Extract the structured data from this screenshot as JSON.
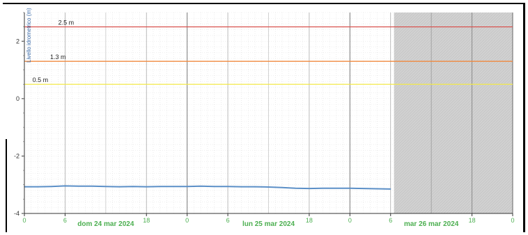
{
  "chart_data": {
    "type": "line",
    "ylabel": "Livello idrometrico (m)",
    "ylim": [
      -4,
      3
    ],
    "y_ticks": [
      "-4",
      "-2",
      "0",
      "2"
    ],
    "x_range_hours": [
      0,
      72
    ],
    "forecast_start_hour": 54.5,
    "x_hour_ticks": [
      {
        "h": 0,
        "label": "0"
      },
      {
        "h": 6,
        "label": "6"
      },
      {
        "h": 18,
        "label": "18"
      },
      {
        "h": 24,
        "label": "0"
      },
      {
        "h": 30,
        "label": "6"
      },
      {
        "h": 42,
        "label": "18"
      },
      {
        "h": 48,
        "label": "0"
      },
      {
        "h": 54,
        "label": "6"
      },
      {
        "h": 66,
        "label": "18"
      },
      {
        "h": 72,
        "label": "0"
      }
    ],
    "day_labels": [
      {
        "h": 12,
        "label": "dom 24 mar 2024"
      },
      {
        "h": 36,
        "label": "lun 25 mar 2024"
      },
      {
        "h": 60,
        "label": "mar 26 mar 2024"
      }
    ],
    "thresholds": [
      {
        "value": 2.5,
        "label": "2.5 m",
        "color": "#d9534f"
      },
      {
        "value": 1.3,
        "label": "1.3 m",
        "color": "#f0883e"
      },
      {
        "value": 0.5,
        "label": "0.5 m",
        "color": "#f2e84a"
      }
    ],
    "series": [
      {
        "color": "#5b8fc7",
        "x": [
          0,
          2,
          4,
          6,
          8,
          10,
          12,
          14,
          16,
          18,
          20,
          22,
          24,
          26,
          28,
          30,
          32,
          34,
          36,
          38,
          40,
          42,
          44,
          46,
          48,
          50,
          52,
          54
        ],
        "y": [
          -3.07,
          -3.07,
          -3.06,
          -3.04,
          -3.05,
          -3.05,
          -3.06,
          -3.07,
          -3.06,
          -3.07,
          -3.06,
          -3.06,
          -3.06,
          -3.05,
          -3.06,
          -3.06,
          -3.07,
          -3.07,
          -3.08,
          -3.1,
          -3.12,
          -3.13,
          -3.12,
          -3.12,
          -3.12,
          -3.13,
          -3.14,
          -3.15
        ]
      }
    ]
  }
}
